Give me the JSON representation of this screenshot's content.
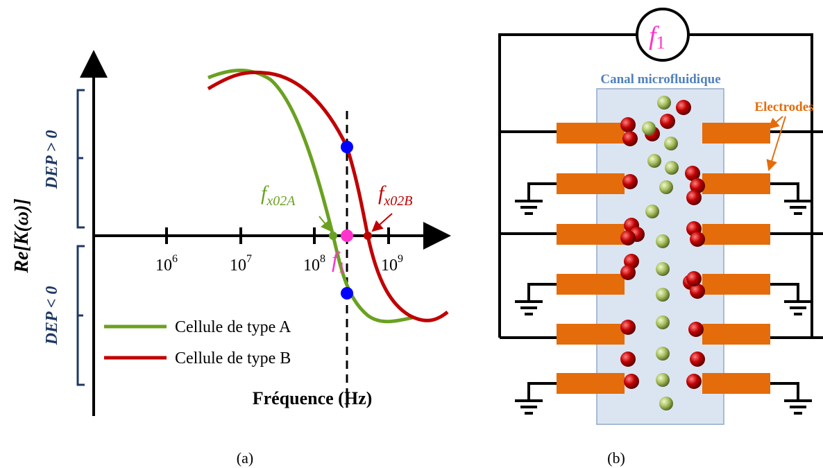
{
  "panel_a": {
    "y_axis_label": "Re[K(ω)]",
    "dep_positive": "DEP > 0",
    "dep_negative": "DEP < 0",
    "x_ticks": [
      {
        "base": "10",
        "exponent": "6"
      },
      {
        "base": "10",
        "exponent": "7"
      },
      {
        "base": "10",
        "exponent": "8"
      },
      {
        "base": "10",
        "exponent": "9"
      }
    ],
    "x_axis_label": "Fréquence (Hz)",
    "crossover_a": {
      "symbol": "f",
      "subscript": "x02A"
    },
    "crossover_b": {
      "symbol": "f",
      "subscript": "x02B"
    },
    "frequency_marker": {
      "symbol": "f",
      "subscript": "1"
    },
    "legend": [
      "Cellule de type A",
      "Cellule de type B"
    ],
    "caption": "(a)"
  },
  "panel_b": {
    "source": {
      "symbol": "f",
      "subscript": "1"
    },
    "channel_label": "Canal microfluidique",
    "electrodes_label": "Electrodes",
    "caption": "(b)"
  }
}
